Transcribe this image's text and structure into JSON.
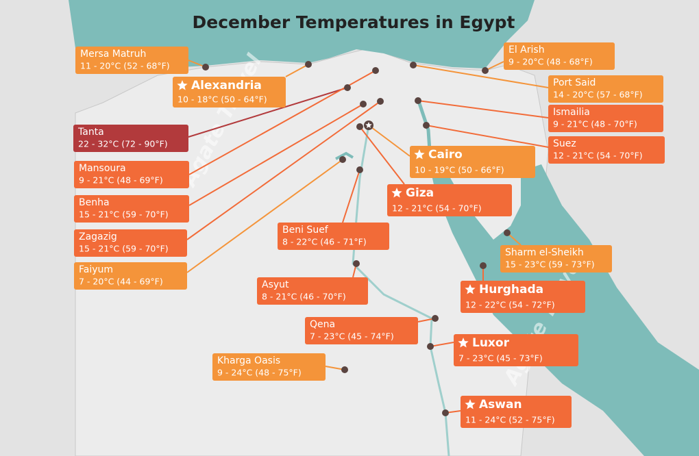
{
  "title": "December Temperatures in Egypt",
  "watermark": "Agate Travel",
  "cities": [
    {
      "name": "Mersa Matruh",
      "temps": "11 - 20°C (52 - 68°F)",
      "color": "#f4943a",
      "featured": false
    },
    {
      "name": "Alexandria",
      "temps": "10 - 18°C (50 - 64°F)",
      "color": "#f4943a",
      "featured": true
    },
    {
      "name": "Tanta",
      "temps": "22 - 32°C (72 - 90°F)",
      "color": "#b23a3c",
      "featured": false
    },
    {
      "name": "Mansoura",
      "temps": "9 - 21°C (48 - 69°F)",
      "color": "#f26b38",
      "featured": false
    },
    {
      "name": "Benha",
      "temps": "15 - 21°C (59 - 70°F)",
      "color": "#f26b38",
      "featured": false
    },
    {
      "name": "Zagazig",
      "temps": "15 - 21°C (59 - 70°F)",
      "color": "#f26b38",
      "featured": false
    },
    {
      "name": "Faiyum",
      "temps": "7 - 20°C (44 - 69°F)",
      "color": "#f4943a",
      "featured": false
    },
    {
      "name": "El Arish",
      "temps": "9 - 20°C (48 - 68°F)",
      "color": "#f4943a",
      "featured": false
    },
    {
      "name": "Port Said",
      "temps": "14 - 20°C (57 - 68°F)",
      "color": "#f4943a",
      "featured": false
    },
    {
      "name": "Ismailia",
      "temps": "9 - 21°C (48 - 70°F)",
      "color": "#f26b38",
      "featured": false
    },
    {
      "name": "Suez",
      "temps": "12 - 21°C (54 - 70°F)",
      "color": "#f26b38",
      "featured": false
    },
    {
      "name": "Cairo",
      "temps": "10 - 19°C (50 - 66°F)",
      "color": "#f4943a",
      "featured": true
    },
    {
      "name": "Giza",
      "temps": "12 - 21°C (54 - 70°F)",
      "color": "#f26b38",
      "featured": true
    },
    {
      "name": "Beni Suef",
      "temps": "8 - 22°C (46 - 71°F)",
      "color": "#f26b38",
      "featured": false
    },
    {
      "name": "Sharm el-Sheikh",
      "temps": "15 - 23°C (59 - 73°F)",
      "color": "#f4943a",
      "featured": false
    },
    {
      "name": "Asyut",
      "temps": "8 - 21°C (46 - 70°F)",
      "color": "#f26b38",
      "featured": false
    },
    {
      "name": "Hurghada",
      "temps": "12 - 22°C (54 - 72°F)",
      "color": "#f26b38",
      "featured": true
    },
    {
      "name": "Qena",
      "temps": "7 - 23°C (45 - 74°F)",
      "color": "#f26b38",
      "featured": false
    },
    {
      "name": "Luxor",
      "temps": "7 - 23°C (45 - 73°F)",
      "color": "#f26b38",
      "featured": true
    },
    {
      "name": "Kharga Oasis",
      "temps": "9 - 24°C (48 - 75°F)",
      "color": "#f4943a",
      "featured": false
    },
    {
      "name": "Aswan",
      "temps": "11 - 24°C (52 - 75°F)",
      "color": "#f26b38",
      "featured": true
    }
  ]
}
